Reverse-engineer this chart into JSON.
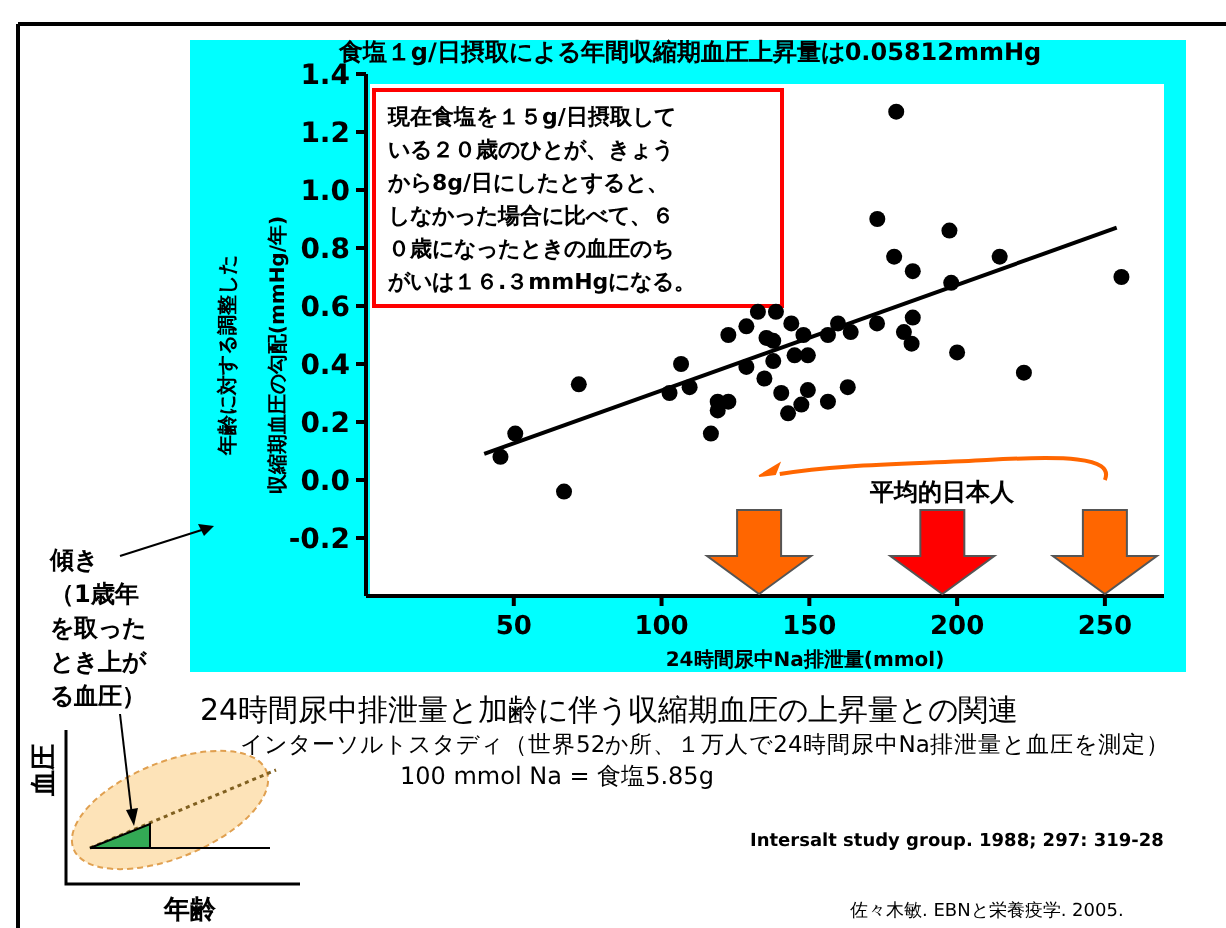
{
  "chart_data": {
    "type": "scatter",
    "title": "食塩１g/日摂取による年間収縮期血圧上昇量は0.05812mmHg",
    "xlabel": "24時間尿中Na排泄量(mmol)",
    "ylabel": "年齢に対する調整した収縮期血圧の勾配(mmHg/年)",
    "series": [
      {
        "type": "scatter",
        "color": "#000000",
        "marker": "circle",
        "x": [
          45.5,
          50.5,
          67,
          72,
          102.7,
          106.6,
          109.5,
          116.7,
          119,
          119,
          122.6,
          122.6,
          128.7,
          128.7,
          132.6,
          134.8,
          135.5,
          137.8,
          137.8,
          138.7,
          140.5,
          142.8,
          143.9,
          145,
          147.3,
          148,
          149.5,
          149.5,
          156.3,
          156.3,
          159.7,
          163,
          164,
          172.9,
          182,
          184.6,
          185,
          185,
          198,
          200,
          222.6,
          255.6,
          179.4,
          173,
          178.7,
          197.4,
          214.4
        ],
        "values": [
          0.08,
          0.16,
          -0.04,
          0.33,
          0.3,
          0.4,
          0.32,
          0.16,
          0.24,
          0.27,
          0.27,
          0.5,
          0.39,
          0.53,
          0.58,
          0.35,
          0.49,
          0.41,
          0.48,
          0.58,
          0.3,
          0.23,
          0.54,
          0.43,
          0.26,
          0.5,
          0.31,
          0.43,
          0.27,
          0.5,
          0.54,
          0.32,
          0.51,
          0.54,
          0.51,
          0.47,
          0.56,
          0.72,
          0.68,
          0.44,
          0.37,
          0.7,
          1.27,
          0.9,
          0.77,
          0.86,
          0.77
        ]
      },
      {
        "type": "line",
        "color": "#000000",
        "x": [
          40,
          254
        ],
        "values": [
          0.09,
          0.87
        ]
      }
    ],
    "xlim": [
      0,
      270
    ],
    "ylim": [
      -0.4,
      1.4
    ],
    "xticks": [
      50,
      100,
      150,
      200,
      250
    ],
    "yticks": [
      {
        "value": 1.4,
        "label": "1.4"
      },
      {
        "value": 1.2,
        "label": "1.2"
      },
      {
        "value": 1,
        "label": "1.0"
      },
      {
        "value": 0.8,
        "label": "0.8"
      },
      {
        "value": 0.6,
        "label": "0.6"
      },
      {
        "value": 0.4,
        "label": "0.4"
      },
      {
        "value": 0.2,
        "label": "0.2"
      },
      {
        "value": 0,
        "label": "0.0"
      },
      {
        "value": -0.2,
        "label": "-0.2"
      }
    ],
    "grid": false,
    "annotations": [
      "現在食塩を１５g/日摂取している２０歳のひとが、きょうから8g/日にしたとすると、しなかった場合に比べて、６０歳になったときの血圧のちがいは１６.３mmHgになる。",
      "平均的日本人",
      "24時間尿中排泄量と加齢に伴う収縮期血圧の上昇量との関連",
      "インターソルトスタディ（世界52か所、１万人で24時間尿中Na排泄量と血圧を測定）",
      "100 mmol Na = 食塩5.85g",
      "Intersalt study group. 1988; 297: 319-28",
      "佐々木敏. EBNと栄養疫学. 2005.",
      "傾き（1歳年を取ったとき上がる血圧）",
      "血圧",
      "年齢"
    ]
  }
}
